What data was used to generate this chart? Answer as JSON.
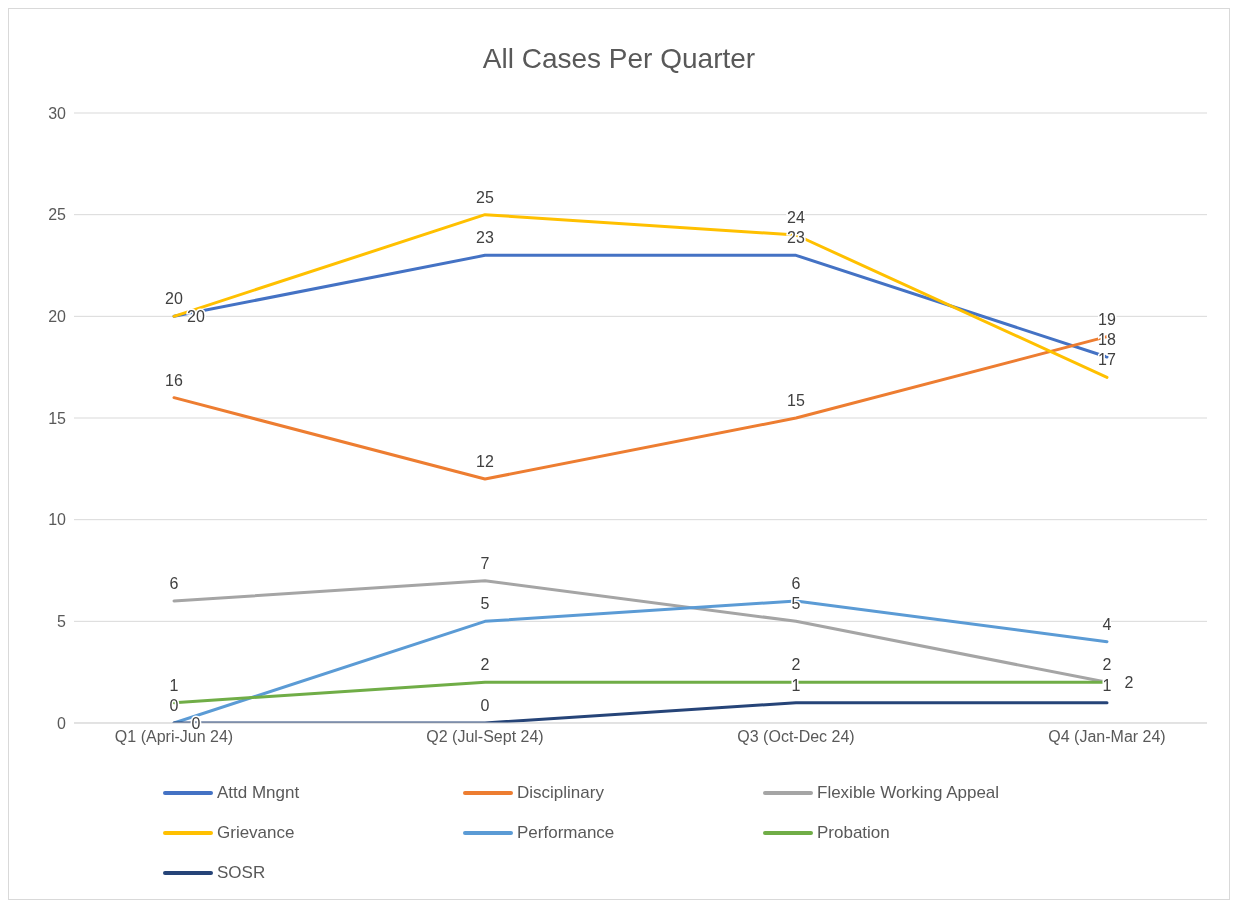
{
  "chart_data": {
    "type": "line",
    "title": "All Cases Per Quarter",
    "categories": [
      "Q1 (Apri-Jun 24)",
      "Q2 (Jul-Sept 24)",
      "Q3 (Oct-Dec 24)",
      "Q4 (Jan-Mar 24)"
    ],
    "series": [
      {
        "name": "Attd Mngnt",
        "color": "#4472c4",
        "values": [
          20,
          23,
          23,
          18
        ]
      },
      {
        "name": "Disciplinary",
        "color": "#ed7d31",
        "values": [
          16,
          12,
          15,
          19
        ]
      },
      {
        "name": "Flexible Working Appeal",
        "color": "#a5a5a5",
        "values": [
          6,
          7,
          5,
          2
        ]
      },
      {
        "name": "Grievance",
        "color": "#ffc000",
        "values": [
          20,
          25,
          24,
          17
        ]
      },
      {
        "name": "Performance",
        "color": "#5b9bd5",
        "values": [
          0,
          5,
          6,
          4
        ]
      },
      {
        "name": "Probation",
        "color": "#70ad47",
        "values": [
          1,
          2,
          2,
          2
        ]
      },
      {
        "name": "SOSR",
        "color": "#264478",
        "values": [
          0,
          0,
          1,
          1
        ]
      }
    ],
    "ylim": [
      0,
      30
    ],
    "yticks": [
      0,
      5,
      10,
      15,
      20,
      25,
      30
    ],
    "grid": "y",
    "legend": "bottom",
    "data_labels": true,
    "marker": "none",
    "line_style": "solid"
  }
}
